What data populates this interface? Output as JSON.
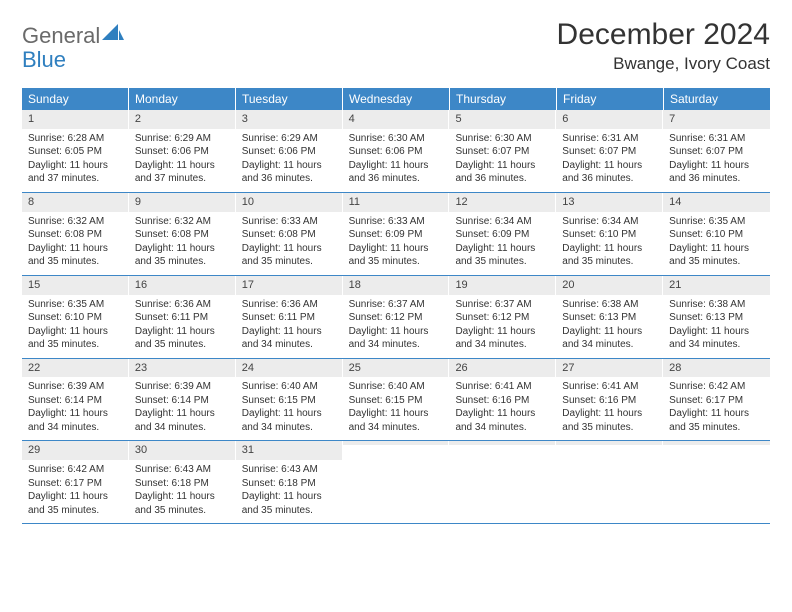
{
  "logo": {
    "general": "General",
    "blue": "Blue"
  },
  "title": "December 2024",
  "location": "Bwange, Ivory Coast",
  "colors": {
    "header_bg": "#3d87c7",
    "header_fg": "#ffffff",
    "daynum_bg": "#ececec",
    "rule": "#3d87c7",
    "text": "#333333",
    "logo_gray": "#6a6a6a",
    "logo_blue": "#2f7fbf"
  },
  "day_headers": [
    "Sunday",
    "Monday",
    "Tuesday",
    "Wednesday",
    "Thursday",
    "Friday",
    "Saturday"
  ],
  "weeks": [
    [
      {
        "n": "1",
        "sr": "Sunrise: 6:28 AM",
        "ss": "Sunset: 6:05 PM",
        "dl": "Daylight: 11 hours and 37 minutes."
      },
      {
        "n": "2",
        "sr": "Sunrise: 6:29 AM",
        "ss": "Sunset: 6:06 PM",
        "dl": "Daylight: 11 hours and 37 minutes."
      },
      {
        "n": "3",
        "sr": "Sunrise: 6:29 AM",
        "ss": "Sunset: 6:06 PM",
        "dl": "Daylight: 11 hours and 36 minutes."
      },
      {
        "n": "4",
        "sr": "Sunrise: 6:30 AM",
        "ss": "Sunset: 6:06 PM",
        "dl": "Daylight: 11 hours and 36 minutes."
      },
      {
        "n": "5",
        "sr": "Sunrise: 6:30 AM",
        "ss": "Sunset: 6:07 PM",
        "dl": "Daylight: 11 hours and 36 minutes."
      },
      {
        "n": "6",
        "sr": "Sunrise: 6:31 AM",
        "ss": "Sunset: 6:07 PM",
        "dl": "Daylight: 11 hours and 36 minutes."
      },
      {
        "n": "7",
        "sr": "Sunrise: 6:31 AM",
        "ss": "Sunset: 6:07 PM",
        "dl": "Daylight: 11 hours and 36 minutes."
      }
    ],
    [
      {
        "n": "8",
        "sr": "Sunrise: 6:32 AM",
        "ss": "Sunset: 6:08 PM",
        "dl": "Daylight: 11 hours and 35 minutes."
      },
      {
        "n": "9",
        "sr": "Sunrise: 6:32 AM",
        "ss": "Sunset: 6:08 PM",
        "dl": "Daylight: 11 hours and 35 minutes."
      },
      {
        "n": "10",
        "sr": "Sunrise: 6:33 AM",
        "ss": "Sunset: 6:08 PM",
        "dl": "Daylight: 11 hours and 35 minutes."
      },
      {
        "n": "11",
        "sr": "Sunrise: 6:33 AM",
        "ss": "Sunset: 6:09 PM",
        "dl": "Daylight: 11 hours and 35 minutes."
      },
      {
        "n": "12",
        "sr": "Sunrise: 6:34 AM",
        "ss": "Sunset: 6:09 PM",
        "dl": "Daylight: 11 hours and 35 minutes."
      },
      {
        "n": "13",
        "sr": "Sunrise: 6:34 AM",
        "ss": "Sunset: 6:10 PM",
        "dl": "Daylight: 11 hours and 35 minutes."
      },
      {
        "n": "14",
        "sr": "Sunrise: 6:35 AM",
        "ss": "Sunset: 6:10 PM",
        "dl": "Daylight: 11 hours and 35 minutes."
      }
    ],
    [
      {
        "n": "15",
        "sr": "Sunrise: 6:35 AM",
        "ss": "Sunset: 6:10 PM",
        "dl": "Daylight: 11 hours and 35 minutes."
      },
      {
        "n": "16",
        "sr": "Sunrise: 6:36 AM",
        "ss": "Sunset: 6:11 PM",
        "dl": "Daylight: 11 hours and 35 minutes."
      },
      {
        "n": "17",
        "sr": "Sunrise: 6:36 AM",
        "ss": "Sunset: 6:11 PM",
        "dl": "Daylight: 11 hours and 34 minutes."
      },
      {
        "n": "18",
        "sr": "Sunrise: 6:37 AM",
        "ss": "Sunset: 6:12 PM",
        "dl": "Daylight: 11 hours and 34 minutes."
      },
      {
        "n": "19",
        "sr": "Sunrise: 6:37 AM",
        "ss": "Sunset: 6:12 PM",
        "dl": "Daylight: 11 hours and 34 minutes."
      },
      {
        "n": "20",
        "sr": "Sunrise: 6:38 AM",
        "ss": "Sunset: 6:13 PM",
        "dl": "Daylight: 11 hours and 34 minutes."
      },
      {
        "n": "21",
        "sr": "Sunrise: 6:38 AM",
        "ss": "Sunset: 6:13 PM",
        "dl": "Daylight: 11 hours and 34 minutes."
      }
    ],
    [
      {
        "n": "22",
        "sr": "Sunrise: 6:39 AM",
        "ss": "Sunset: 6:14 PM",
        "dl": "Daylight: 11 hours and 34 minutes."
      },
      {
        "n": "23",
        "sr": "Sunrise: 6:39 AM",
        "ss": "Sunset: 6:14 PM",
        "dl": "Daylight: 11 hours and 34 minutes."
      },
      {
        "n": "24",
        "sr": "Sunrise: 6:40 AM",
        "ss": "Sunset: 6:15 PM",
        "dl": "Daylight: 11 hours and 34 minutes."
      },
      {
        "n": "25",
        "sr": "Sunrise: 6:40 AM",
        "ss": "Sunset: 6:15 PM",
        "dl": "Daylight: 11 hours and 34 minutes."
      },
      {
        "n": "26",
        "sr": "Sunrise: 6:41 AM",
        "ss": "Sunset: 6:16 PM",
        "dl": "Daylight: 11 hours and 34 minutes."
      },
      {
        "n": "27",
        "sr": "Sunrise: 6:41 AM",
        "ss": "Sunset: 6:16 PM",
        "dl": "Daylight: 11 hours and 35 minutes."
      },
      {
        "n": "28",
        "sr": "Sunrise: 6:42 AM",
        "ss": "Sunset: 6:17 PM",
        "dl": "Daylight: 11 hours and 35 minutes."
      }
    ],
    [
      {
        "n": "29",
        "sr": "Sunrise: 6:42 AM",
        "ss": "Sunset: 6:17 PM",
        "dl": "Daylight: 11 hours and 35 minutes."
      },
      {
        "n": "30",
        "sr": "Sunrise: 6:43 AM",
        "ss": "Sunset: 6:18 PM",
        "dl": "Daylight: 11 hours and 35 minutes."
      },
      {
        "n": "31",
        "sr": "Sunrise: 6:43 AM",
        "ss": "Sunset: 6:18 PM",
        "dl": "Daylight: 11 hours and 35 minutes."
      },
      {
        "empty": true
      },
      {
        "empty": true
      },
      {
        "empty": true
      },
      {
        "empty": true
      }
    ]
  ]
}
